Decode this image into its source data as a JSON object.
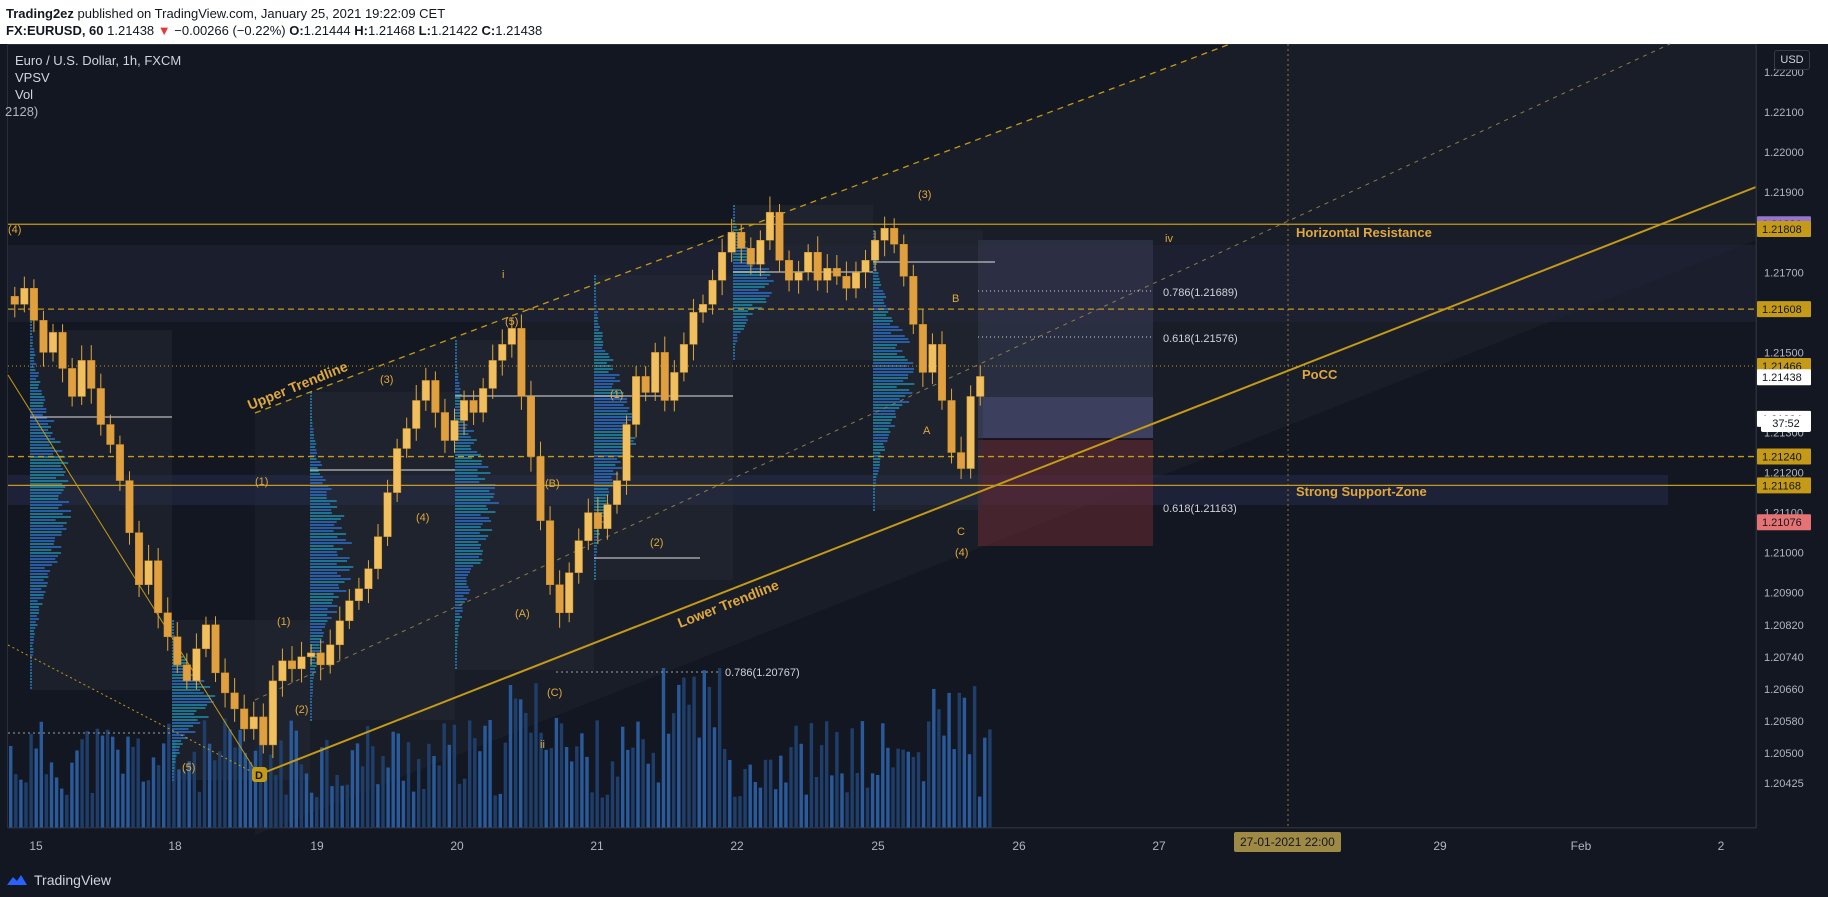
{
  "header": {
    "publisher": "Trading2ez",
    "published_text": "published on TradingView.com, January 25, 2021 19:22:09 CET",
    "symbol": "FX:EURUSD, 60",
    "last": "1.21438",
    "change": "−0.00266 (−0.22%)",
    "o_label": "O:",
    "o": "1.21444",
    "h_label": "H:",
    "h": "1.21468",
    "l_label": "L:",
    "l": "1.21422",
    "c_label": "C:",
    "c": "1.21438"
  },
  "legend": {
    "title": "Euro / U.S. Dollar, 1h, FXCM",
    "ind1": "VPSV",
    "ind2": "Vol",
    "ind3": "2128)"
  },
  "currency_button": "USD",
  "countdown": "37:52",
  "x_cursor_label": "27-01-2021  22:00",
  "footer": {
    "brand": "TradingView"
  },
  "chart_data": {
    "type": "candlestick",
    "symbol": "EURUSD",
    "timeframe": "1h",
    "y_range": [
      1.204,
      1.2236
    ],
    "y_ticks": [
      "1.22200",
      "1.22100",
      "1.22000",
      "1.21900",
      "1.21700",
      "1.21500",
      "1.21300",
      "1.21200",
      "1.21100",
      "1.21000",
      "1.20900",
      "1.20820",
      "1.20740",
      "1.20660",
      "1.20580",
      "1.20500",
      "1.20425"
    ],
    "x_ticks": [
      "15",
      "18",
      "19",
      "20",
      "21",
      "22",
      "25",
      "26",
      "27",
      "28",
      "29",
      "Feb",
      "2"
    ],
    "price_badges": [
      {
        "text": "1.21820",
        "color": "#9575cd",
        "price": 1.2182
      },
      {
        "text": "1.21808",
        "color": "#c49a16",
        "price": 1.21808
      },
      {
        "text": "1.21608",
        "color": "#c49a16",
        "price": 1.21608
      },
      {
        "text": "1.21466",
        "color": "#c49a16",
        "price": 1.21466
      },
      {
        "text": "1.21438",
        "color": "#ffffff",
        "price": 1.21438
      },
      {
        "text": "1.21334",
        "color": "#ffffff",
        "price": 1.21334
      },
      {
        "text": "1.21240",
        "color": "#c49a16",
        "price": 1.2124
      },
      {
        "text": "1.21168",
        "color": "#c49a16",
        "price": 1.21168
      },
      {
        "text": "1.21076",
        "color": "#e57373",
        "price": 1.21076
      }
    ],
    "closes": [
      1.2162,
      1.2166,
      1.2158,
      1.215,
      1.2155,
      1.2146,
      1.2139,
      1.2148,
      1.2141,
      1.2132,
      1.2127,
      1.2118,
      1.2105,
      1.2092,
      1.2098,
      1.2085,
      1.2079,
      1.2072,
      1.2068,
      1.2076,
      1.2082,
      1.207,
      1.2065,
      1.2061,
      1.2056,
      1.2059,
      1.2052,
      1.2068,
      1.2073,
      1.2071,
      1.2074,
      1.2075,
      1.2072,
      1.2077,
      1.2083,
      1.2088,
      1.2091,
      1.2096,
      1.2104,
      1.2115,
      1.2126,
      1.2131,
      1.2138,
      1.2143,
      1.2135,
      1.2128,
      1.2133,
      1.2138,
      1.2135,
      1.2141,
      1.2148,
      1.2152,
      1.2156,
      1.2139,
      1.2124,
      1.2108,
      1.2092,
      1.2085,
      1.2095,
      1.2103,
      1.211,
      1.2106,
      1.2112,
      1.2118,
      1.2132,
      1.2144,
      1.214,
      1.215,
      1.2138,
      1.2145,
      1.2152,
      1.216,
      1.2162,
      1.2168,
      1.2175,
      1.218,
      1.2176,
      1.2172,
      1.2178,
      1.2185,
      1.2173,
      1.2168,
      1.217,
      1.2175,
      1.2168,
      1.2171,
      1.2169,
      1.2166,
      1.217,
      1.2173,
      1.2178,
      1.2181,
      1.2177,
      1.2169,
      1.2157,
      1.2145,
      1.2152,
      1.2138,
      1.2125,
      1.2121,
      1.2139,
      1.2144
    ],
    "annotations": {
      "labels": [
        "Horizontal Resistance",
        "PoCC",
        "Strong Support-Zone",
        "Upper Trendline",
        "Lower Trendline"
      ],
      "fib_labels": [
        "0.786(1.21689)",
        "0.618(1.21576)",
        "0.618(1.21163)",
        "0.786(1.20767)"
      ],
      "waves": [
        "(4)",
        "i",
        "(5)",
        "(3)",
        "(1)",
        "(4)",
        "(B)",
        "(1)",
        "(2)",
        "(A)",
        "(C)",
        "ii",
        "(1)",
        "(2)",
        "(5)",
        "(3)",
        "B",
        "A",
        "C",
        "(4)",
        "iv"
      ],
      "pivot": "D"
    },
    "horizontal_levels": [
      1.2182,
      1.21608,
      1.21466,
      1.2124,
      1.21168
    ],
    "volume_units": "relative"
  }
}
